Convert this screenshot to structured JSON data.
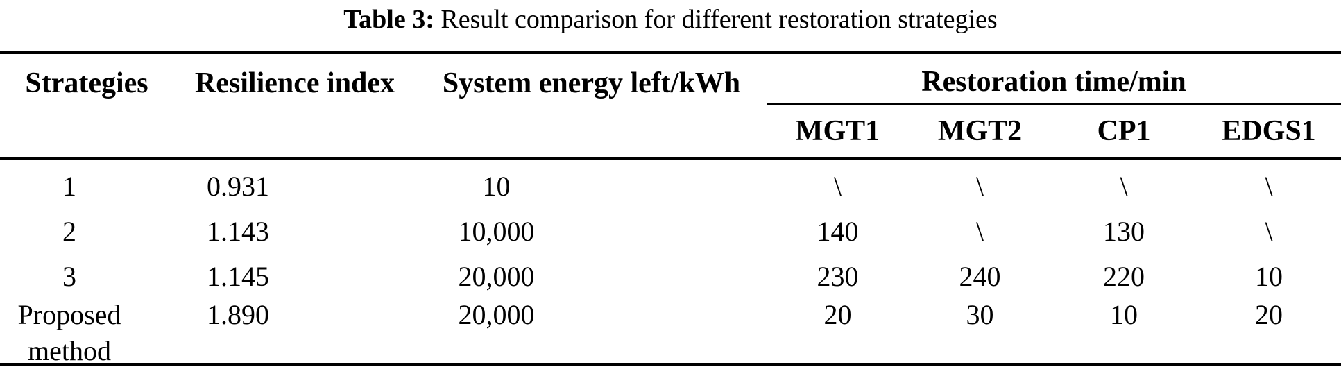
{
  "caption": {
    "label": "Table 3:",
    "text": " Result comparison for different restoration strategies"
  },
  "table": {
    "headers": {
      "strategies": "Strategies",
      "resilience": "Resilience index",
      "energy": "System energy left/kWh",
      "restoration_group": "Restoration time/min",
      "sub": [
        "MGT1",
        "MGT2",
        "CP1",
        "EDGS1"
      ]
    },
    "rows": [
      [
        "1",
        "0.931",
        "10",
        "\\",
        "\\",
        "\\",
        "\\"
      ],
      [
        "2",
        "1.143",
        "10,000",
        "140",
        "\\",
        "130",
        "\\"
      ],
      [
        "3",
        "1.145",
        "20,000",
        "230",
        "240",
        "220",
        "10"
      ],
      [
        "Proposed method",
        "1.890",
        "20,000",
        "20",
        "30",
        "10",
        "20"
      ]
    ]
  },
  "colors": {
    "text": "#000000",
    "background": "#ffffff",
    "rule": "#000000"
  }
}
